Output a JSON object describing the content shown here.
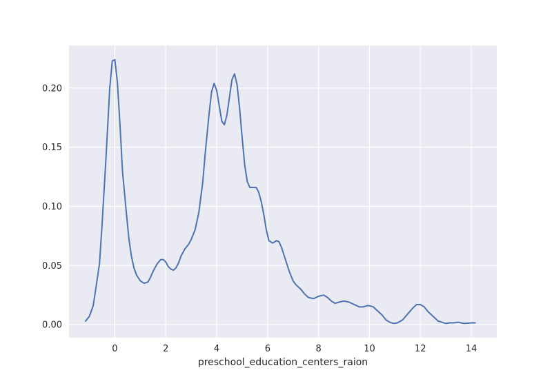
{
  "chart_data": {
    "type": "line",
    "title": "",
    "xlabel": "preschool_education_centers_raion",
    "ylabel": "",
    "xlim": [
      -1.8,
      15.0
    ],
    "ylim": [
      -0.011,
      0.236
    ],
    "x_ticks": [
      "0",
      "2",
      "4",
      "6",
      "8",
      "10",
      "12",
      "14"
    ],
    "x_tick_values": [
      0,
      2,
      4,
      6,
      8,
      10,
      12,
      14
    ],
    "y_ticks": [
      "0.00",
      "0.05",
      "0.10",
      "0.15",
      "0.20"
    ],
    "y_tick_values": [
      0,
      0.05,
      0.1,
      0.15,
      0.2
    ],
    "grid": true,
    "colors": {
      "background": "#eaeaf2",
      "grid": "#ffffff",
      "line": "#4c72b0"
    },
    "series": [
      {
        "x": [
          -1.15,
          -1.0,
          -0.85,
          -0.75,
          -0.6,
          -0.5,
          -0.35,
          -0.2,
          -0.1,
          0.0,
          0.1,
          0.2,
          0.3,
          0.45,
          0.55,
          0.65,
          0.75,
          0.85,
          1.0,
          1.15,
          1.3,
          1.4,
          1.5,
          1.65,
          1.8,
          1.9,
          2.0,
          2.1,
          2.2,
          2.3,
          2.4,
          2.5,
          2.6,
          2.75,
          2.9,
          3.0,
          3.15,
          3.3,
          3.45,
          3.55,
          3.7,
          3.8,
          3.9,
          4.0,
          4.1,
          4.2,
          4.3,
          4.4,
          4.5,
          4.6,
          4.7,
          4.8,
          4.9,
          5.0,
          5.1,
          5.2,
          5.3,
          5.45,
          5.55,
          5.65,
          5.75,
          5.85,
          5.95,
          6.05,
          6.2,
          6.35,
          6.45,
          6.55,
          6.7,
          6.85,
          7.0,
          7.1,
          7.2,
          7.3,
          7.45,
          7.6,
          7.8,
          8.0,
          8.2,
          8.35,
          8.5,
          8.65,
          8.8,
          9.0,
          9.2,
          9.4,
          9.6,
          9.75,
          9.9,
          10.0,
          10.15,
          10.3,
          10.5,
          10.65,
          10.8,
          10.95,
          11.1,
          11.3,
          11.5,
          11.7,
          11.85,
          12.0,
          12.15,
          12.3,
          12.5,
          12.7,
          12.85,
          13.0,
          13.15,
          13.3,
          13.5,
          13.7,
          13.85,
          14.0,
          14.15
        ],
        "values": [
          0.003,
          0.007,
          0.016,
          0.03,
          0.052,
          0.085,
          0.14,
          0.2,
          0.223,
          0.224,
          0.205,
          0.17,
          0.13,
          0.095,
          0.073,
          0.058,
          0.048,
          0.042,
          0.037,
          0.035,
          0.036,
          0.04,
          0.045,
          0.051,
          0.055,
          0.055,
          0.053,
          0.049,
          0.047,
          0.046,
          0.048,
          0.052,
          0.058,
          0.064,
          0.068,
          0.072,
          0.08,
          0.095,
          0.12,
          0.145,
          0.178,
          0.197,
          0.204,
          0.198,
          0.185,
          0.172,
          0.169,
          0.177,
          0.192,
          0.207,
          0.212,
          0.203,
          0.183,
          0.158,
          0.135,
          0.121,
          0.116,
          0.116,
          0.116,
          0.112,
          0.104,
          0.093,
          0.08,
          0.071,
          0.069,
          0.071,
          0.07,
          0.065,
          0.055,
          0.045,
          0.037,
          0.034,
          0.032,
          0.03,
          0.026,
          0.023,
          0.022,
          0.024,
          0.025,
          0.023,
          0.02,
          0.018,
          0.019,
          0.02,
          0.019,
          0.017,
          0.015,
          0.015,
          0.016,
          0.016,
          0.015,
          0.012,
          0.008,
          0.004,
          0.002,
          0.001,
          0.0015,
          0.004,
          0.009,
          0.014,
          0.017,
          0.017,
          0.015,
          0.011,
          0.007,
          0.003,
          0.002,
          0.001,
          0.0015,
          0.0015,
          0.002,
          0.001,
          0.0012,
          0.0015,
          0.0015
        ]
      }
    ]
  }
}
